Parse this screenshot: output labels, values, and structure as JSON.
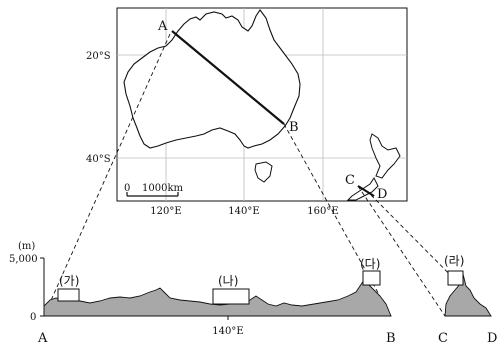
{
  "map": {
    "lat_labels": [
      "20°S",
      "40°S"
    ],
    "lon_labels": [
      "120°E",
      "140°E",
      "160°E"
    ],
    "scale": {
      "zero": "0",
      "distance": "1000km"
    },
    "points": {
      "A": "A",
      "B": "B",
      "C": "C",
      "D": "D"
    }
  },
  "profile": {
    "y_unit": "(m)",
    "y_ticks": [
      "5,000",
      "0"
    ],
    "x_label_mid": "140°E",
    "endpoints": {
      "A": "A",
      "B": "B",
      "C": "C",
      "D": "D"
    },
    "boxes": [
      "(가)",
      "(나)",
      "(다)",
      "(라)"
    ]
  },
  "colors": {
    "land": "#ffffff",
    "sea": "#ffffff",
    "terrain": "#a8a8a8",
    "lines": "#111111",
    "grid": "#bdbdbd"
  }
}
